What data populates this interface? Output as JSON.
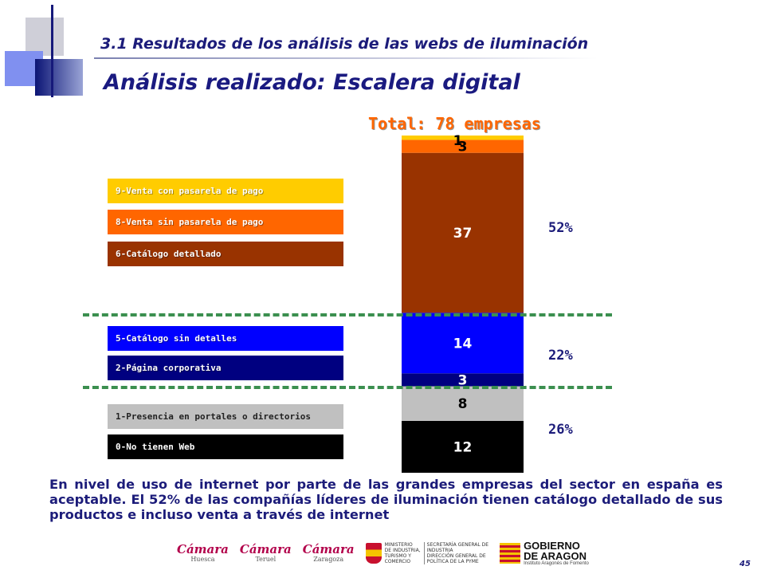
{
  "header": {
    "subtitle": "3.1 Resultados de  los análisis de las webs de iluminación",
    "title": "Análisis realizado: Escalera digital"
  },
  "chart_data": {
    "type": "bar",
    "stacked": true,
    "title": "Total: 78 empresas",
    "categories": [
      "Total"
    ],
    "series": [
      {
        "name": "0-No tienen Web",
        "value": 12,
        "label": "12",
        "color": "#000000",
        "label_color": "#ffffff"
      },
      {
        "name": "1-Presencia en portales o directorios",
        "value": 8,
        "label": "8",
        "color": "#c0c0c0",
        "label_color": "#000000"
      },
      {
        "name": "2-Página corporativa",
        "value": 3,
        "label": "3",
        "color": "#000080",
        "label_color": "#ffffff"
      },
      {
        "name": "5-Catálogo sin detalles",
        "value": 14,
        "label": "14",
        "color": "#0000ff",
        "label_color": "#ffffff"
      },
      {
        "name": "6-Catálogo detallado",
        "value": 37,
        "label": "37",
        "color": "#993300",
        "label_color": "#ffffff"
      },
      {
        "name": "8-Venta sin pasarela de pago",
        "value": 3,
        "label": "3",
        "color": "#ff6600",
        "label_color": "#000000"
      },
      {
        "name": "9-Venta con pasarela de pago",
        "value": 1,
        "label": "1",
        "color": "#ffcc00",
        "label_color": "#000000"
      }
    ],
    "total": 78,
    "group_percentages": [
      {
        "label": "52%",
        "covers": [
          "6-Catálogo detallado",
          "8-Venta sin pasarela de pago",
          "9-Venta con pasarela de pago"
        ]
      },
      {
        "label": "22%",
        "covers": [
          "2-Página corporativa",
          "5-Catálogo sin detalles"
        ]
      },
      {
        "label": "26%",
        "covers": [
          "0-No tienen Web",
          "1-Presencia en portales o directorios"
        ]
      }
    ],
    "legend_placement": "left",
    "grid": false
  },
  "legend": [
    {
      "label": "9-Venta con pasarela de pago",
      "color": "#ffcc00",
      "dark_text": false
    },
    {
      "label": "8-Venta sin pasarela de pago",
      "color": "#ff6600",
      "dark_text": false
    },
    {
      "label": "6-Catálogo detallado",
      "color": "#993300",
      "dark_text": false
    },
    {
      "label": "5-Catálogo sin detalles",
      "color": "#0000ff",
      "dark_text": false
    },
    {
      "label": "2-Página corporativa",
      "color": "#000080",
      "dark_text": false
    },
    {
      "label": "1-Presencia en portales o directorios",
      "color": "#c0c0c0",
      "dark_text": true
    },
    {
      "label": "0-No tienen Web",
      "color": "#000000",
      "dark_text": false
    }
  ],
  "body_text": "En nivel de uso de internet por parte de las grandes empresas del sector en españa es aceptable. El 52% de las compañías líderes de iluminación tienen catálogo detallado de sus productos e incluso venta a través de internet",
  "logos": {
    "camara_word": "Cámara",
    "camara_cities": [
      "Huesca",
      "Teruel",
      "Zaragoza"
    ],
    "ministerio_lines": [
      "MINISTERIO",
      "DE INDUSTRIA,",
      "TURISMO Y",
      "COMERCIO"
    ],
    "secretaria_lines": [
      "SECRETARÍA GENERAL DE",
      "INDUSTRIA",
      "DIRECCIÓN GENERAL DE",
      "POLÍTICA DE LA PYME"
    ],
    "aragon_lines": [
      "GOBIERNO",
      "DE ARAGON"
    ],
    "aragon_sub": "Instituto Aragonés de Fomento"
  },
  "page_number": "45",
  "colors": {
    "title": "#1a1a80",
    "total": "#ff6600",
    "dashed_line": "#3b8f4f"
  }
}
